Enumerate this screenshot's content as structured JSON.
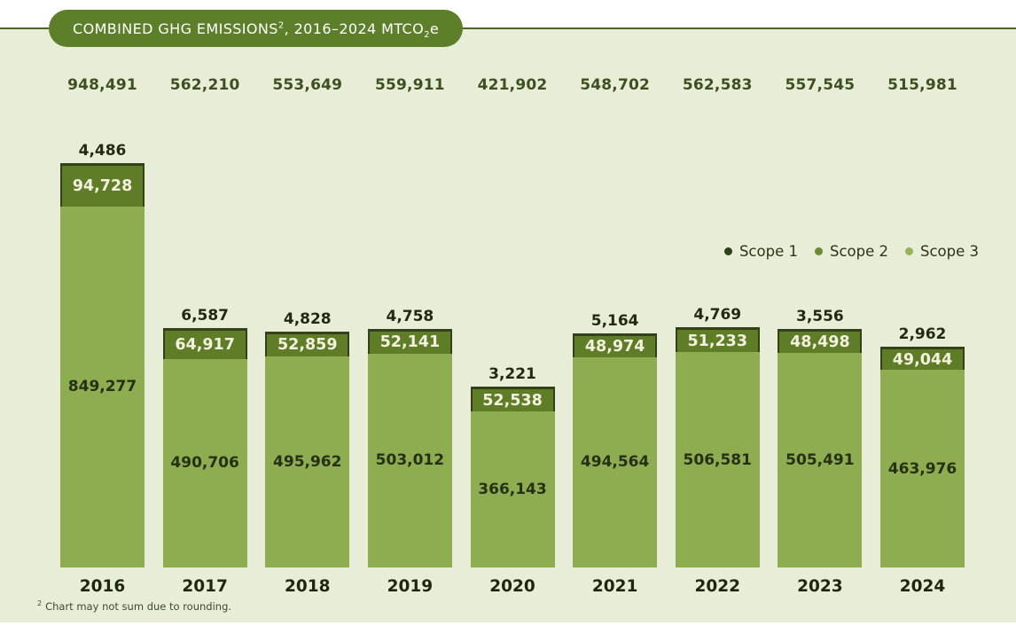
{
  "banner": {
    "text_main": "COMBINED GHG EMISSIONS",
    "superscript": "2",
    "text_mid": ", 2016–2024 MTCO",
    "subscript": "2",
    "text_end": "e"
  },
  "legend": [
    {
      "label": "Scope 1",
      "color": "#31401b"
    },
    {
      "label": "Scope 2",
      "color": "#6d8a35"
    },
    {
      "label": "Scope 3",
      "color": "#97b15c"
    }
  ],
  "footnote": {
    "superscript": "2",
    "text": "Chart may not sum due to rounding."
  },
  "colors": {
    "background_panel": "#e8edd7",
    "banner_pill": "#5d7f29",
    "banner_line": "#4c681f",
    "scope1_segment": "#33411a",
    "scope2_segment": "#5f7c26",
    "scope3_segment": "#8ead51",
    "total_label_text": "#3e5021",
    "scope1_label_text": "#1f2a11",
    "scope2_label_text": "#f3f1df",
    "scope3_label_text": "#263014",
    "year_label_text": "#1d2710"
  },
  "chart_data": {
    "type": "bar",
    "stacked": true,
    "title": "COMBINED GHG EMISSIONS², 2016–2024 MTCO₂e",
    "unit": "MTCO₂e",
    "grid": false,
    "legend_position": "right-middle",
    "categories": [
      "2016",
      "2017",
      "2018",
      "2019",
      "2020",
      "2021",
      "2022",
      "2023",
      "2024"
    ],
    "series": [
      {
        "name": "Scope 1",
        "color": "#33411a",
        "values": [
          4486,
          6587,
          4828,
          4758,
          3221,
          5164,
          4769,
          3556,
          2962
        ]
      },
      {
        "name": "Scope 2",
        "color": "#5f7c26",
        "values": [
          94728,
          64917,
          52859,
          52141,
          52538,
          48974,
          51233,
          48498,
          49044
        ]
      },
      {
        "name": "Scope 3",
        "color": "#8ead51",
        "values": [
          849277,
          490706,
          495962,
          503012,
          366143,
          494564,
          506581,
          505491,
          463976
        ]
      }
    ],
    "totals": [
      948491,
      562210,
      553649,
      559911,
      421902,
      548702,
      562583,
      557545,
      515981
    ],
    "value_label_placement": {
      "scope1": "above-bar",
      "scope2": "inside-segment",
      "scope3": "inside-segment",
      "totals": "top-row"
    },
    "footnote": "Chart may not sum due to rounding."
  }
}
